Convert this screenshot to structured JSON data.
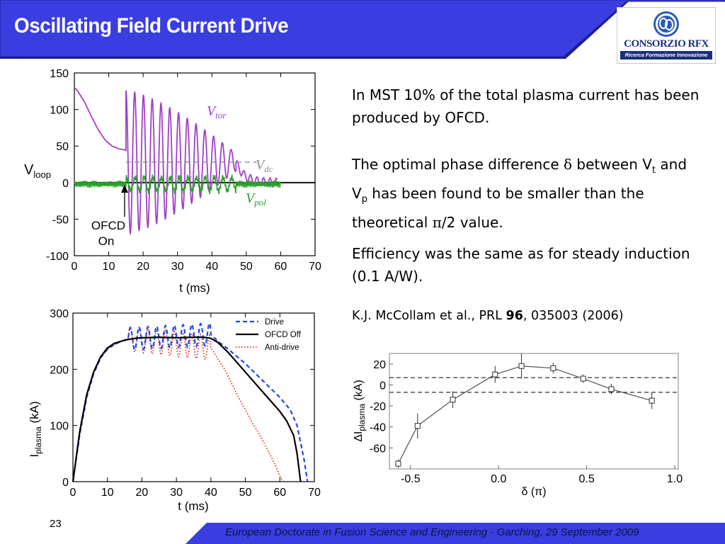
{
  "slide": {
    "title": "Oscillating Field Current Drive",
    "page_number": "23",
    "footer": "European Doctorate in Fusion Science and Engineering  -  Garching, 29 September 2009",
    "colors": {
      "header_blue": "#3a3de0",
      "footer_blue": "#3a3de0",
      "text": "#000000"
    }
  },
  "logo": {
    "name": "CONSORZIO RFX",
    "tagline": "Ricerca Formazione Innovazione"
  },
  "body": {
    "p1": "In MST 10% of the total plasma current has been produced by OFCD.",
    "p2_a": "The optimal phase difference ",
    "p2_delta": "δ",
    "p2_b": " between V",
    "p2_t": "t",
    "p2_c": " and V",
    "p2_p": "p",
    "p2_d": " has been found to be smaller than the theoretical ",
    "p2_pi": "π",
    "p2_e": "/2 value.",
    "p3": "Efficiency was the same as for steady induction (0.1 A/W).",
    "ref_authors": "K.J. McCollam et al., PRL ",
    "ref_volume": "96",
    "ref_rest": ", 035003 (2006)"
  },
  "chart_data": [
    {
      "type": "line",
      "ylabel_main": "V",
      "ylabel_sub": "loop",
      "xlabel": "t (ms)",
      "xlim": [
        0,
        70
      ],
      "ylim": [
        -100,
        150
      ],
      "xticks": [
        "0",
        "10",
        "20",
        "30",
        "40",
        "50",
        "60",
        "70"
      ],
      "yticks": [
        "150",
        "100",
        "50",
        "0",
        "-50",
        "-100"
      ],
      "annotations": {
        "vtor_main": "V",
        "vtor_sub": "tor",
        "vdc_main": "V",
        "vdc_sub": "dc",
        "vpol_main": "V",
        "vpol_sub": "pol",
        "ofcd_line1": "OFCD",
        "ofcd_line2": "On"
      },
      "series": [
        {
          "name": "V_tor",
          "color": "#a040c8",
          "x": [
            0,
            1,
            3,
            5,
            7,
            9,
            11,
            13,
            14.5,
            15
          ],
          "y": [
            130,
            125,
            110,
            90,
            72,
            58,
            50,
            46,
            45,
            44
          ]
        },
        {
          "name": "V_tor oscillation",
          "color": "#a040c8",
          "t_start": 15,
          "t_end": 47,
          "period": 2.55,
          "offset": 28,
          "amp_start": 98,
          "amp_end": 12
        },
        {
          "name": "V_dc",
          "color": "#909090",
          "x": [
            15,
            53
          ],
          "y": [
            28,
            28
          ]
        },
        {
          "name": "V_pol",
          "color": "#2aa02a",
          "t_start": 0,
          "t_end": 60,
          "baseline": -2
        }
      ]
    },
    {
      "type": "line",
      "ylabel_main": "I",
      "ylabel_sub": "plasma",
      "ylabel_unit": " (kA)",
      "xlabel": "t (ms)",
      "xlim": [
        0,
        70
      ],
      "ylim": [
        0,
        300
      ],
      "xticks": [
        "0",
        "10",
        "20",
        "30",
        "40",
        "50",
        "60",
        "70"
      ],
      "yticks": [
        "300",
        "200",
        "100",
        "0"
      ],
      "legend_position": "top-right",
      "series": [
        {
          "name": "Drive",
          "color": "#1f47e8",
          "style": "dashed"
        },
        {
          "name": "OFCD Off",
          "color": "#000000",
          "style": "solid"
        },
        {
          "name": "Anti-drive",
          "color": "#e8301c",
          "style": "dotted"
        }
      ],
      "ofcd_off": {
        "x": [
          0,
          2,
          4,
          6,
          8,
          10,
          12,
          14,
          16,
          18,
          20,
          25,
          30,
          35,
          38,
          40,
          42,
          45,
          50,
          55,
          60,
          62,
          64,
          65,
          66
        ],
        "y": [
          0,
          90,
          155,
          195,
          222,
          238,
          246,
          250,
          253,
          255,
          256,
          257,
          256,
          257,
          257,
          255,
          248,
          230,
          195,
          160,
          125,
          108,
          82,
          50,
          0
        ]
      },
      "drive": {
        "x": [
          0,
          2,
          4,
          6,
          8,
          10,
          12,
          14,
          16,
          40,
          42,
          45,
          50,
          55,
          60,
          63,
          65,
          66,
          67,
          68
        ],
        "y": [
          0,
          85,
          150,
          192,
          220,
          236,
          244,
          250,
          254,
          262,
          250,
          236,
          210,
          180,
          150,
          128,
          100,
          70,
          40,
          0
        ]
      },
      "anti": {
        "x": [
          0,
          2,
          4,
          6,
          8,
          10,
          12,
          14,
          16,
          40,
          44,
          46,
          48,
          50,
          52,
          54,
          56,
          58,
          60,
          61
        ],
        "y": [
          0,
          86,
          152,
          193,
          220,
          235,
          244,
          250,
          254,
          238,
          200,
          175,
          150,
          128,
          105,
          85,
          62,
          38,
          10,
          0
        ]
      }
    },
    {
      "type": "scatter",
      "xlabel": "δ (π)",
      "ylabel_main": "ΔI",
      "ylabel_sub": "plasma",
      "ylabel_unit": " (kA)",
      "xlim": [
        -0.62,
        1.02
      ],
      "ylim": [
        -80,
        30
      ],
      "xticks": [
        "-0.5",
        "0.0",
        "0.5",
        "1.0"
      ],
      "yticks": [
        "20",
        "0",
        "-20",
        "-40",
        "-60"
      ],
      "dashed_lines": [
        7,
        -7
      ],
      "x": [
        -0.57,
        -0.46,
        -0.26,
        -0.02,
        0.13,
        0.31,
        0.48,
        0.64,
        0.87
      ],
      "y": [
        -75,
        -39,
        -14,
        10,
        18,
        16,
        6,
        -4,
        -15
      ],
      "yerr": [
        4,
        12,
        8,
        8,
        12,
        5,
        4,
        5,
        8
      ]
    }
  ]
}
